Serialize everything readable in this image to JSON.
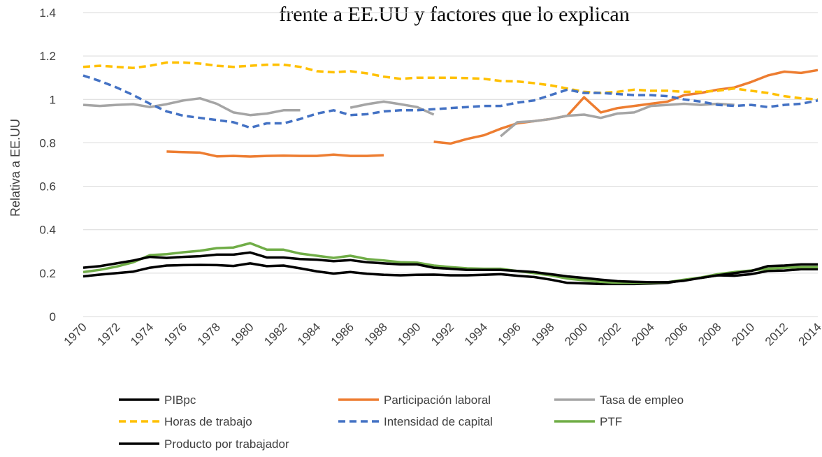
{
  "chart_data": {
    "type": "line",
    "title": "frente a EE.UU y factores que lo explican",
    "y_label": "Relativa a EE.UU",
    "x": [
      1970,
      1971,
      1972,
      1973,
      1974,
      1975,
      1976,
      1977,
      1978,
      1979,
      1980,
      1981,
      1982,
      1983,
      1984,
      1985,
      1986,
      1987,
      1988,
      1989,
      1990,
      1991,
      1992,
      1993,
      1994,
      1995,
      1996,
      1997,
      1998,
      1999,
      2000,
      2001,
      2002,
      2003,
      2004,
      2005,
      2006,
      2007,
      2008,
      2009,
      2010,
      2011,
      2012,
      2013,
      2014
    ],
    "xlim": [
      1970,
      2014
    ],
    "xticks": [
      1970,
      1972,
      1974,
      1976,
      1978,
      1980,
      1982,
      1984,
      1986,
      1988,
      1990,
      1992,
      1994,
      1996,
      1998,
      2000,
      2002,
      2004,
      2006,
      2008,
      2010,
      2012,
      2014
    ],
    "ylim": [
      0,
      1.4
    ],
    "yticks": [
      0,
      0.2,
      0.4,
      0.6,
      0.8,
      1,
      1.2,
      1.4
    ],
    "grid": true,
    "legend": "bottom",
    "series": [
      {
        "name": "PIBpc",
        "color": "#000000",
        "dashed": false,
        "values": [
          0.185,
          0.193,
          0.2,
          0.207,
          0.225,
          0.235,
          0.237,
          0.238,
          0.237,
          0.233,
          0.245,
          0.232,
          0.235,
          0.222,
          0.208,
          0.198,
          0.205,
          0.197,
          0.192,
          0.19,
          0.192,
          0.193,
          0.19,
          0.19,
          0.192,
          0.195,
          0.188,
          0.182,
          0.17,
          0.155,
          0.153,
          0.15,
          0.15,
          0.15,
          0.152,
          0.155,
          0.168,
          0.178,
          0.19,
          0.188,
          0.195,
          0.21,
          0.212,
          0.218,
          0.218
        ]
      },
      {
        "name": "Participación laboral",
        "color": "#ed7d31",
        "dashed": false,
        "values": [
          null,
          null,
          null,
          null,
          null,
          0.76,
          0.757,
          0.755,
          0.738,
          0.74,
          0.737,
          0.74,
          0.741,
          0.74,
          0.74,
          0.746,
          0.74,
          0.74,
          0.743,
          null,
          null,
          0.805,
          0.797,
          0.818,
          0.835,
          0.865,
          0.89,
          0.9,
          0.91,
          0.925,
          1.01,
          0.94,
          0.96,
          0.97,
          0.98,
          0.99,
          1.02,
          1.03,
          1.045,
          1.055,
          1.08,
          1.11,
          1.128,
          1.122,
          1.135
        ]
      },
      {
        "name": "Tasa de empleo",
        "color": "#a5a5a5",
        "dashed": false,
        "values": [
          0.975,
          0.97,
          0.975,
          0.978,
          0.965,
          0.978,
          0.995,
          1.005,
          0.98,
          0.94,
          0.928,
          0.935,
          0.95,
          0.95,
          null,
          null,
          0.962,
          0.978,
          0.99,
          0.978,
          0.965,
          0.93,
          null,
          null,
          null,
          0.83,
          0.895,
          0.9,
          0.91,
          0.925,
          0.93,
          0.915,
          0.935,
          0.94,
          0.97,
          0.975,
          0.98,
          0.975,
          0.98,
          0.975,
          null,
          null,
          null,
          null,
          null
        ]
      },
      {
        "name": "Horas de trabajo",
        "color": "#ffc000",
        "dashed": true,
        "values": [
          1.15,
          1.155,
          1.15,
          1.145,
          1.155,
          1.17,
          1.17,
          1.165,
          1.155,
          1.15,
          1.155,
          1.16,
          1.16,
          1.15,
          1.13,
          1.125,
          1.13,
          1.12,
          1.105,
          1.095,
          1.1,
          1.1,
          1.1,
          1.098,
          1.095,
          1.085,
          1.083,
          1.075,
          1.065,
          1.05,
          1.035,
          1.03,
          1.035,
          1.045,
          1.04,
          1.04,
          1.035,
          1.035,
          1.04,
          1.05,
          1.04,
          1.03,
          1.015,
          1.005,
          1.0
        ]
      },
      {
        "name": "Intensidad de capital",
        "color": "#4472c4",
        "dashed": true,
        "values": [
          1.11,
          1.085,
          1.055,
          1.02,
          0.98,
          0.945,
          0.925,
          0.915,
          0.905,
          0.895,
          0.87,
          0.89,
          0.89,
          0.91,
          0.935,
          0.95,
          0.928,
          0.932,
          0.945,
          0.95,
          0.95,
          0.955,
          0.96,
          0.965,
          0.97,
          0.97,
          0.985,
          0.995,
          1.02,
          1.045,
          1.03,
          1.03,
          1.025,
          1.02,
          1.02,
          1.015,
          1.0,
          0.99,
          0.975,
          0.97,
          0.975,
          0.965,
          0.975,
          0.98,
          0.995
        ]
      },
      {
        "name": "PTF",
        "color": "#70ad47",
        "dashed": false,
        "values": [
          0.205,
          0.215,
          0.23,
          0.25,
          0.283,
          0.287,
          0.296,
          0.303,
          0.315,
          0.318,
          0.338,
          0.308,
          0.308,
          0.29,
          0.28,
          0.27,
          0.28,
          0.265,
          0.258,
          0.25,
          0.248,
          0.235,
          0.228,
          0.222,
          0.22,
          0.22,
          0.21,
          0.2,
          0.19,
          0.175,
          0.167,
          0.16,
          0.155,
          0.155,
          0.155,
          0.158,
          0.17,
          0.18,
          0.195,
          0.205,
          0.212,
          0.22,
          0.225,
          0.228,
          0.228
        ]
      },
      {
        "name": "Producto por trabajador",
        "color": "#000000",
        "dashed": false,
        "values": [
          0.225,
          0.232,
          0.245,
          0.258,
          0.275,
          0.27,
          0.275,
          0.278,
          0.285,
          0.285,
          0.295,
          0.272,
          0.272,
          0.265,
          0.262,
          0.255,
          0.26,
          0.25,
          0.245,
          0.24,
          0.24,
          0.225,
          0.22,
          0.215,
          0.215,
          0.215,
          0.21,
          0.205,
          0.195,
          0.185,
          0.178,
          0.17,
          0.163,
          0.16,
          0.158,
          0.158,
          0.165,
          0.178,
          0.19,
          0.2,
          0.21,
          0.232,
          0.235,
          0.24,
          0.24
        ]
      }
    ]
  }
}
